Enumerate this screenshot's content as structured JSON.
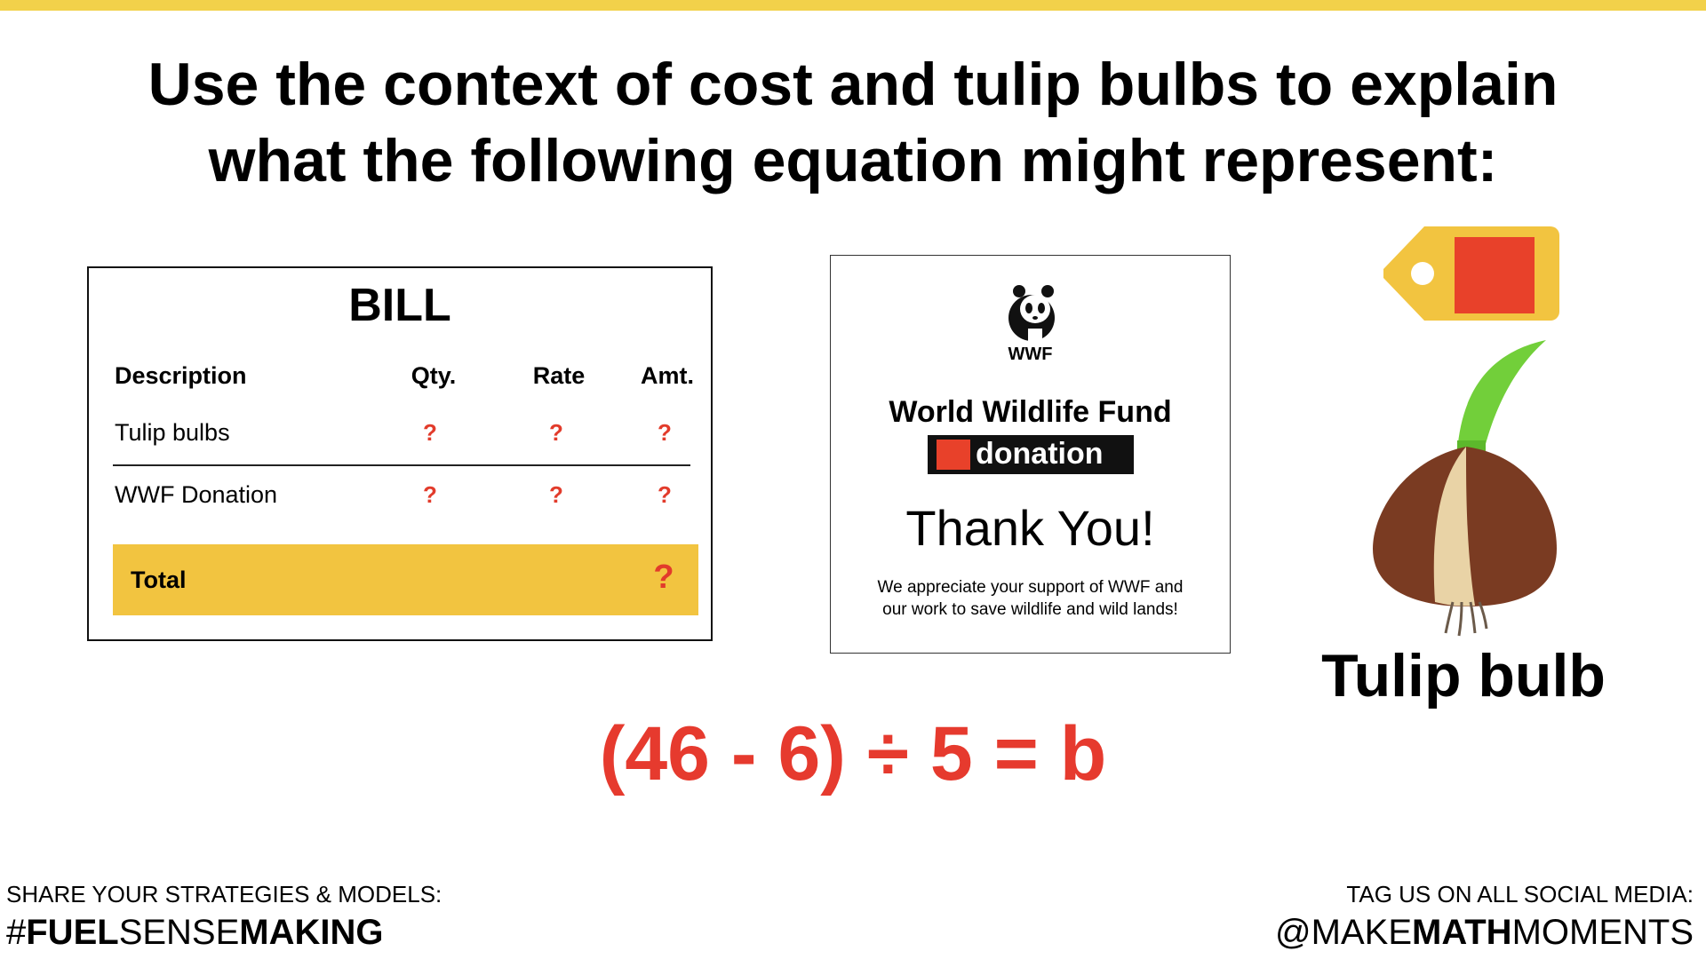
{
  "title": {
    "line1": "Use the context of cost and tulip bulbs to explain",
    "line2": "what the following equation might represent:"
  },
  "bill": {
    "title": "BILL",
    "headers": [
      "Description",
      "Qty.",
      "Rate",
      "Amt."
    ],
    "rows": [
      {
        "description": "Tulip bulbs",
        "qty": "?",
        "rate": "?",
        "amt": "?"
      },
      {
        "description": "WWF Donation",
        "qty": "?",
        "rate": "?",
        "amt": "?"
      }
    ],
    "total_label": "Total",
    "total_value": "?"
  },
  "card": {
    "logo_text": "WWF",
    "org": "World Wildlife Fund",
    "donation": "donation",
    "thanks": "Thank You!",
    "message_line1": "We appreciate your support of WWF and",
    "message_line2": "our work to save wildlife and wild lands!"
  },
  "bulb": {
    "label": "Tulip bulb"
  },
  "equation": "(46 - 6) ÷ 5 = b",
  "footer": {
    "left_caption": "SHARE YOUR STRATEGIES & MODELS:",
    "left_hash": "#",
    "left_bold1": "FUEL",
    "left_light": "SENSE",
    "left_bold2": "MAKING",
    "right_caption": "TAG US ON ALL SOCIAL MEDIA:",
    "right_at": "@MAKE",
    "right_bold": "MATH",
    "right_light": "MOMENTS"
  },
  "colors": {
    "accent_yellow": "#f2c440",
    "question_red": "#e23b2b",
    "tag_red": "#e8412a",
    "stem_green": "#72cf3a"
  }
}
